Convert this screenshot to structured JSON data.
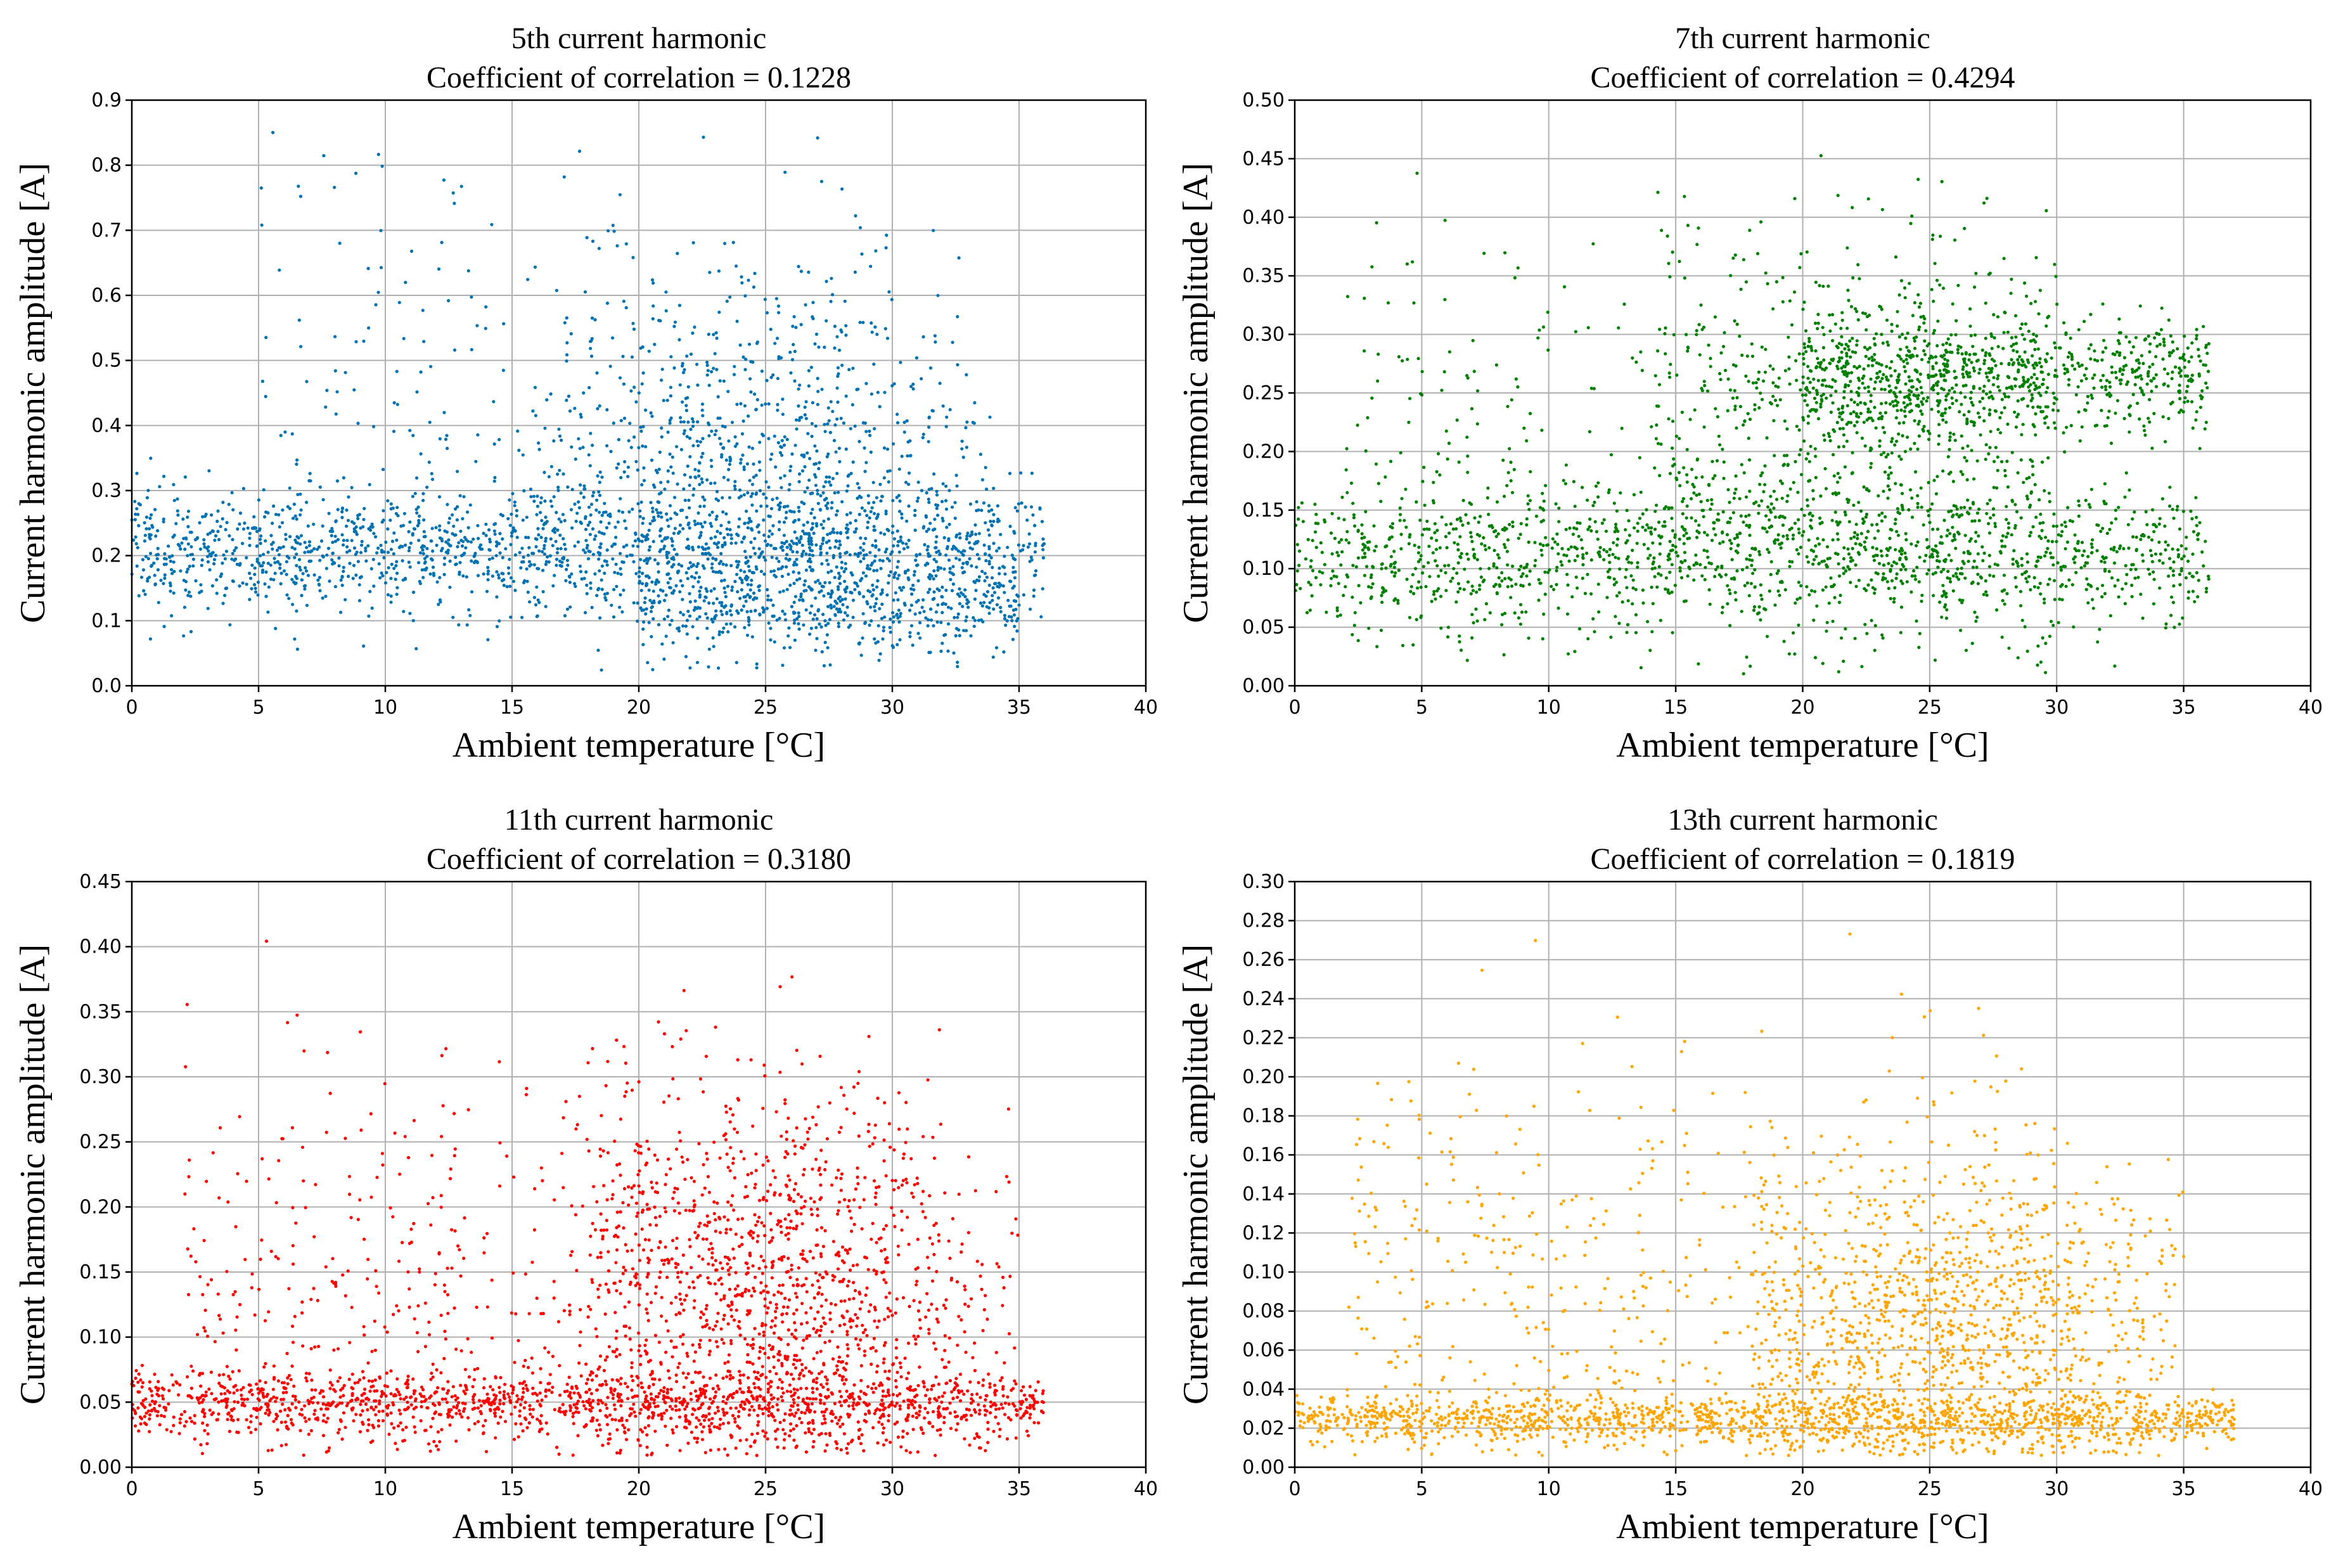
{
  "chart_data": [
    {
      "type": "scatter",
      "title": "5th current harmonic",
      "subtitle": "Coefficient of correlation = 0.1228",
      "xlabel": "Ambient temperature [°C]",
      "ylabel": "Current harmonic amplitude [A]",
      "xlim": [
        0,
        40
      ],
      "ylim": [
        0,
        0.9
      ],
      "xticks": [
        0,
        5,
        10,
        15,
        20,
        25,
        30,
        35,
        40
      ],
      "yticks": [
        "0.0",
        "0.1",
        "0.2",
        "0.3",
        "0.4",
        "0.5",
        "0.6",
        "0.7",
        "0.8",
        "0.9"
      ],
      "grid": true,
      "color": "#0072b2",
      "clusters": [
        {
          "x": [
            0,
            36
          ],
          "y_center": 0.21,
          "y_spread": 0.05,
          "weight": 0.55,
          "x_bias": "uniform"
        },
        {
          "x": [
            20,
            35
          ],
          "y_center": 0.12,
          "y_spread": 0.04,
          "weight": 0.15,
          "x_bias": "uniform"
        },
        {
          "x": [
            15,
            34
          ],
          "y_center": 0.35,
          "y_spread": 0.12,
          "weight": 0.22,
          "x_bias": "center25"
        },
        {
          "x": [
            5,
            30
          ],
          "y_center": 0.5,
          "y_spread": 0.16,
          "weight": 0.08,
          "x_bias": "uniform"
        }
      ]
    },
    {
      "type": "scatter",
      "title": "7th current harmonic",
      "subtitle": "Coefficient of correlation = 0.4294",
      "xlabel": "Ambient temperature [°C]",
      "ylabel": "Current harmonic amplitude [A]",
      "xlim": [
        0,
        40
      ],
      "ylim": [
        0,
        0.5
      ],
      "xticks": [
        0,
        5,
        10,
        15,
        20,
        25,
        30,
        35,
        40
      ],
      "yticks": [
        "0.00",
        "0.05",
        "0.10",
        "0.15",
        "0.20",
        "0.25",
        "0.30",
        "0.35",
        "0.40",
        "0.45",
        "0.50"
      ],
      "grid": true,
      "color": "#008000",
      "clusters": [
        {
          "x": [
            0,
            36
          ],
          "y_center": 0.11,
          "y_spread": 0.03,
          "weight": 0.45,
          "x_bias": "uniform"
        },
        {
          "x": [
            20,
            36
          ],
          "y_center": 0.265,
          "y_spread": 0.025,
          "weight": 0.25,
          "x_bias": "uniform"
        },
        {
          "x": [
            14,
            30
          ],
          "y_center": 0.23,
          "y_spread": 0.08,
          "weight": 0.2,
          "x_bias": "center22"
        },
        {
          "x": [
            2,
            30
          ],
          "y_center": 0.22,
          "y_spread": 0.1,
          "weight": 0.1,
          "x_bias": "uniform"
        }
      ]
    },
    {
      "type": "scatter",
      "title": "11th current harmonic",
      "subtitle": "Coefficient of correlation = 0.3180",
      "xlabel": "Ambient temperature [°C]",
      "ylabel": "Current harmonic amplitude [A]",
      "xlim": [
        0,
        40
      ],
      "ylim": [
        0,
        0.45
      ],
      "xticks": [
        0,
        5,
        10,
        15,
        20,
        25,
        30,
        35,
        40
      ],
      "yticks": [
        "0.00",
        "0.05",
        "0.10",
        "0.15",
        "0.20",
        "0.25",
        "0.30",
        "0.35",
        "0.40",
        "0.45"
      ],
      "grid": true,
      "color": "#ff0000",
      "clusters": [
        {
          "x": [
            0,
            36
          ],
          "y_center": 0.05,
          "y_spread": 0.012,
          "weight": 0.45,
          "x_bias": "uniform"
        },
        {
          "x": [
            18,
            35
          ],
          "y_center": 0.14,
          "y_spread": 0.07,
          "weight": 0.35,
          "x_bias": "center25"
        },
        {
          "x": [
            2,
            30
          ],
          "y_center": 0.15,
          "y_spread": 0.09,
          "weight": 0.2,
          "x_bias": "uniform"
        }
      ]
    },
    {
      "type": "scatter",
      "title": "13th current harmonic",
      "subtitle": "Coefficient of correlation = 0.1819",
      "xlabel": "Ambient temperature [°C]",
      "ylabel": "Current harmonic amplitude [A]",
      "xlim": [
        0,
        40
      ],
      "ylim": [
        0,
        0.3
      ],
      "xticks": [
        0,
        5,
        10,
        15,
        20,
        25,
        30,
        35,
        40
      ],
      "yticks": [
        "0.00",
        "0.02",
        "0.04",
        "0.06",
        "0.08",
        "0.10",
        "0.12",
        "0.14",
        "0.16",
        "0.18",
        "0.20",
        "0.22",
        "0.24",
        "0.26",
        "0.28",
        "0.30"
      ],
      "grid": true,
      "color": "#ffa500",
      "clusters": [
        {
          "x": [
            0,
            37
          ],
          "y_center": 0.025,
          "y_spread": 0.006,
          "weight": 0.45,
          "x_bias": "uniform"
        },
        {
          "x": [
            18,
            35
          ],
          "y_center": 0.07,
          "y_spread": 0.04,
          "weight": 0.35,
          "x_bias": "center25"
        },
        {
          "x": [
            2,
            30
          ],
          "y_center": 0.09,
          "y_spread": 0.06,
          "weight": 0.2,
          "x_bias": "uniform"
        }
      ]
    }
  ]
}
